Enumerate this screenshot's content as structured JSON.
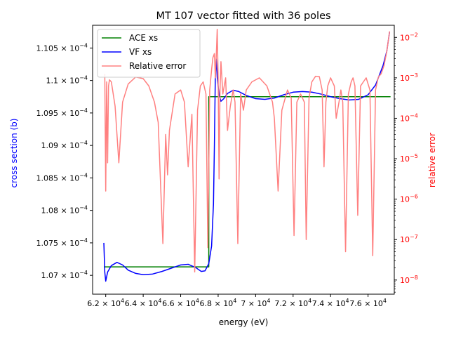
{
  "chart_data": {
    "type": "line",
    "title": "MT 107 vector fitted with 36 poles",
    "xlabel": "energy (eV)",
    "ylabel_left": "cross section (b)",
    "ylabel_right": "relative error",
    "xlim": [
      61300,
      77400
    ],
    "ylim_left": [
      0.00010671,
      0.00011085
    ],
    "ylim_right_log10": [
      -8.35,
      -1.7
    ],
    "x_ticks": [
      {
        "value": 62000,
        "label": "6.2 × 10^4"
      },
      {
        "value": 64000,
        "label": "6.4 × 10^4"
      },
      {
        "value": 66000,
        "label": "6.6 × 10^4"
      },
      {
        "value": 68000,
        "label": "6.8 × 10^4"
      },
      {
        "value": 70000,
        "label": "7 × 10^4"
      },
      {
        "value": 72000,
        "label": "7.2 × 10^4"
      },
      {
        "value": 74000,
        "label": "7.4 × 10^4"
      },
      {
        "value": 76000,
        "label": "7.6 × 10^4"
      }
    ],
    "y_left_ticks": [
      {
        "value": 0.000107,
        "label": "1.07 × 10^−4"
      },
      {
        "value": 0.0001075,
        "label": "1.075 × 10^−4"
      },
      {
        "value": 0.000108,
        "label": "1.08 × 10^−4"
      },
      {
        "value": 0.0001085,
        "label": "1.085 × 10^−4"
      },
      {
        "value": 0.000109,
        "label": "1.09 × 10^−4"
      },
      {
        "value": 0.0001095,
        "label": "1.095 × 10^−4"
      },
      {
        "value": 0.00011,
        "label": "1.1 × 10^−4"
      },
      {
        "value": 0.0001105,
        "label": "1.105 × 10^−4"
      }
    ],
    "y_right_ticks": [
      {
        "value": -8,
        "label": "10^−8"
      },
      {
        "value": -7,
        "label": "10^−7"
      },
      {
        "value": -6,
        "label": "10^−6"
      },
      {
        "value": -5,
        "label": "10^−5"
      },
      {
        "value": -4,
        "label": "10^−4"
      },
      {
        "value": -3,
        "label": "10^−3"
      },
      {
        "value": -2,
        "label": "10^−2"
      }
    ],
    "legend": "top-left",
    "grid": false,
    "series": [
      {
        "name": "ACE xs",
        "color": "#008000",
        "axis": "left",
        "points": [
          [
            61900,
            0.00010713
          ],
          [
            67500,
            0.00010713
          ],
          [
            67500,
            0.00010975
          ],
          [
            77200,
            0.00010975
          ]
        ]
      },
      {
        "name": "VF xs",
        "color": "#0000ff",
        "axis": "left",
        "points": [
          [
            61900,
            0.0001075
          ],
          [
            61950,
            0.00010705
          ],
          [
            62000,
            0.00010691
          ],
          [
            62100,
            0.00010705
          ],
          [
            62300,
            0.00010715
          ],
          [
            62600,
            0.0001072
          ],
          [
            62900,
            0.00010716
          ],
          [
            63200,
            0.00010708
          ],
          [
            63600,
            0.00010703
          ],
          [
            64000,
            0.00010701
          ],
          [
            64500,
            0.00010702
          ],
          [
            65000,
            0.00010706
          ],
          [
            65500,
            0.00010711
          ],
          [
            66000,
            0.00010716
          ],
          [
            66400,
            0.00010717
          ],
          [
            66800,
            0.00010712
          ],
          [
            67100,
            0.00010706
          ],
          [
            67300,
            0.00010707
          ],
          [
            67500,
            0.00010718
          ],
          [
            67650,
            0.00010745
          ],
          [
            67750,
            0.0001081
          ],
          [
            67800,
            0.000109
          ],
          [
            67850,
            0.00011008
          ],
          [
            67900,
            0.00011033
          ],
          [
            67950,
            0.00011005
          ],
          [
            68050,
            0.00010978
          ],
          [
            68150,
            0.00010968
          ],
          [
            68300,
            0.00010972
          ],
          [
            68500,
            0.0001098
          ],
          [
            68800,
            0.00010985
          ],
          [
            69100,
            0.00010983
          ],
          [
            69500,
            0.00010977
          ],
          [
            70000,
            0.00010972
          ],
          [
            70500,
            0.00010971
          ],
          [
            71000,
            0.00010973
          ],
          [
            71500,
            0.00010978
          ],
          [
            72000,
            0.00010982
          ],
          [
            72500,
            0.00010983
          ],
          [
            73000,
            0.00010982
          ],
          [
            73500,
            0.00010979
          ],
          [
            74000,
            0.00010975
          ],
          [
            74500,
            0.00010972
          ],
          [
            75000,
            0.0001097
          ],
          [
            75500,
            0.00010971
          ],
          [
            76000,
            0.00010978
          ],
          [
            76400,
            0.00010993
          ],
          [
            76800,
            0.00011023
          ],
          [
            77000,
            0.00011045
          ],
          [
            77150,
            0.00011075
          ]
        ]
      },
      {
        "name": "Relative error",
        "color": "#ff8080",
        "axis": "right",
        "log": true,
        "points": [
          [
            61950,
            -2.9
          ],
          [
            62000,
            -5.8
          ],
          [
            62050,
            -3.1
          ],
          [
            62100,
            -5.1
          ],
          [
            62150,
            -3.2
          ],
          [
            62200,
            -3.05
          ],
          [
            62300,
            -3.1
          ],
          [
            62500,
            -3.7
          ],
          [
            62700,
            -5.1
          ],
          [
            62900,
            -3.6
          ],
          [
            63200,
            -3.15
          ],
          [
            63600,
            -2.98
          ],
          [
            64000,
            -3.02
          ],
          [
            64300,
            -3.2
          ],
          [
            64600,
            -3.6
          ],
          [
            64800,
            -4.1
          ],
          [
            65050,
            -7.1
          ],
          [
            65200,
            -4.4
          ],
          [
            65300,
            -5.4
          ],
          [
            65400,
            -4.3
          ],
          [
            65700,
            -3.4
          ],
          [
            66000,
            -3.3
          ],
          [
            66200,
            -3.6
          ],
          [
            66400,
            -5.2
          ],
          [
            66600,
            -3.9
          ],
          [
            66750,
            -7.8
          ],
          [
            66900,
            -3.8
          ],
          [
            67050,
            -3.2
          ],
          [
            67200,
            -3.1
          ],
          [
            67350,
            -3.4
          ],
          [
            67450,
            -7.2
          ],
          [
            67550,
            -3.3
          ],
          [
            67650,
            -2.8
          ],
          [
            67720,
            -2.5
          ],
          [
            67800,
            -2.4
          ],
          [
            67850,
            -3.0
          ],
          [
            67900,
            -2.45
          ],
          [
            67950,
            -1.8
          ],
          [
            68000,
            -3.0
          ],
          [
            68050,
            -5.5
          ],
          [
            68100,
            -3.3
          ],
          [
            68150,
            -2.6
          ],
          [
            68250,
            -3.4
          ],
          [
            68400,
            -3.0
          ],
          [
            68500,
            -4.3
          ],
          [
            68650,
            -3.7
          ],
          [
            68800,
            -3.3
          ],
          [
            68900,
            -3.6
          ],
          [
            69050,
            -7.1
          ],
          [
            69200,
            -3.4
          ],
          [
            69350,
            -3.8
          ],
          [
            69500,
            -3.3
          ],
          [
            69800,
            -3.1
          ],
          [
            70200,
            -3.0
          ],
          [
            70600,
            -3.2
          ],
          [
            70900,
            -3.6
          ],
          [
            71000,
            -4.0
          ],
          [
            71200,
            -5.8
          ],
          [
            71400,
            -3.8
          ],
          [
            71700,
            -3.3
          ],
          [
            71900,
            -3.5
          ],
          [
            72050,
            -6.9
          ],
          [
            72200,
            -3.6
          ],
          [
            72400,
            -3.4
          ],
          [
            72600,
            -3.6
          ],
          [
            72700,
            -7.0
          ],
          [
            72850,
            -3.5
          ],
          [
            73000,
            -3.1
          ],
          [
            73200,
            -2.96
          ],
          [
            73400,
            -2.97
          ],
          [
            73550,
            -3.3
          ],
          [
            73650,
            -5.2
          ],
          [
            73750,
            -3.6
          ],
          [
            73850,
            -3.2
          ],
          [
            74000,
            -3.0
          ],
          [
            74200,
            -3.2
          ],
          [
            74300,
            -4.0
          ],
          [
            74450,
            -3.6
          ],
          [
            74550,
            -3.3
          ],
          [
            74650,
            -3.6
          ],
          [
            74800,
            -7.3
          ],
          [
            74950,
            -3.4
          ],
          [
            75100,
            -3.1
          ],
          [
            75200,
            -3.0
          ],
          [
            75300,
            -3.2
          ],
          [
            75450,
            -6.4
          ],
          [
            75600,
            -3.2
          ],
          [
            75750,
            -3.1
          ],
          [
            75900,
            -3.0
          ],
          [
            76100,
            -3.3
          ],
          [
            76250,
            -7.4
          ],
          [
            76400,
            -3.3
          ],
          [
            76550,
            -2.98
          ],
          [
            76700,
            -2.9
          ],
          [
            76850,
            -2.7
          ],
          [
            77000,
            -2.35
          ],
          [
            77150,
            -1.85
          ]
        ]
      }
    ]
  }
}
